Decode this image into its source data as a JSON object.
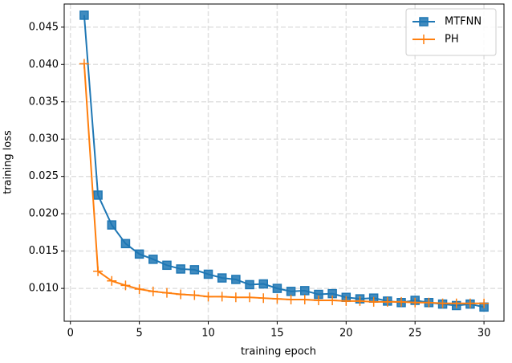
{
  "chart_data": {
    "type": "line",
    "xlabel": "training epoch",
    "ylabel": "training loss",
    "x": [
      1,
      2,
      3,
      4,
      5,
      6,
      7,
      8,
      9,
      10,
      11,
      12,
      13,
      14,
      15,
      16,
      17,
      18,
      19,
      20,
      21,
      22,
      23,
      24,
      25,
      26,
      27,
      28,
      29,
      30
    ],
    "series": [
      {
        "name": "MTFNN",
        "color": "#1f77b4",
        "marker": "square",
        "values": [
          0.0466,
          0.0225,
          0.0185,
          0.016,
          0.0146,
          0.0139,
          0.0131,
          0.0126,
          0.0125,
          0.0119,
          0.0114,
          0.0112,
          0.0105,
          0.0106,
          0.01,
          0.0096,
          0.0097,
          0.0092,
          0.0093,
          0.0088,
          0.0086,
          0.0087,
          0.0083,
          0.0081,
          0.0084,
          0.0081,
          0.0079,
          0.0077,
          0.0079,
          0.0075
        ]
      },
      {
        "name": "PH",
        "color": "#ff7f0e",
        "marker": "plus",
        "values": [
          0.0401,
          0.0123,
          0.011,
          0.0104,
          0.0099,
          0.0096,
          0.0094,
          0.0092,
          0.0091,
          0.0089,
          0.0089,
          0.0088,
          0.0088,
          0.0087,
          0.0086,
          0.0085,
          0.0085,
          0.0084,
          0.0084,
          0.0083,
          0.0083,
          0.0082,
          0.0082,
          0.0082,
          0.0081,
          0.0081,
          0.008,
          0.008,
          0.008,
          0.008
        ]
      }
    ],
    "xlim": [
      -0.45,
      31.45
    ],
    "xticks": [
      0,
      5,
      10,
      15,
      20,
      25,
      30
    ],
    "ylim": [
      0.0056,
      0.0481
    ],
    "yticks": [
      {
        "value": 0.01,
        "label": "0.010"
      },
      0.015,
      {
        "value": 0.02,
        "label": "0.020"
      },
      0.025,
      {
        "value": 0.03,
        "label": "0.030"
      },
      0.035,
      {
        "value": 0.04,
        "label": "0.040"
      },
      0.045
    ],
    "grid": true,
    "legend": "upper right"
  }
}
